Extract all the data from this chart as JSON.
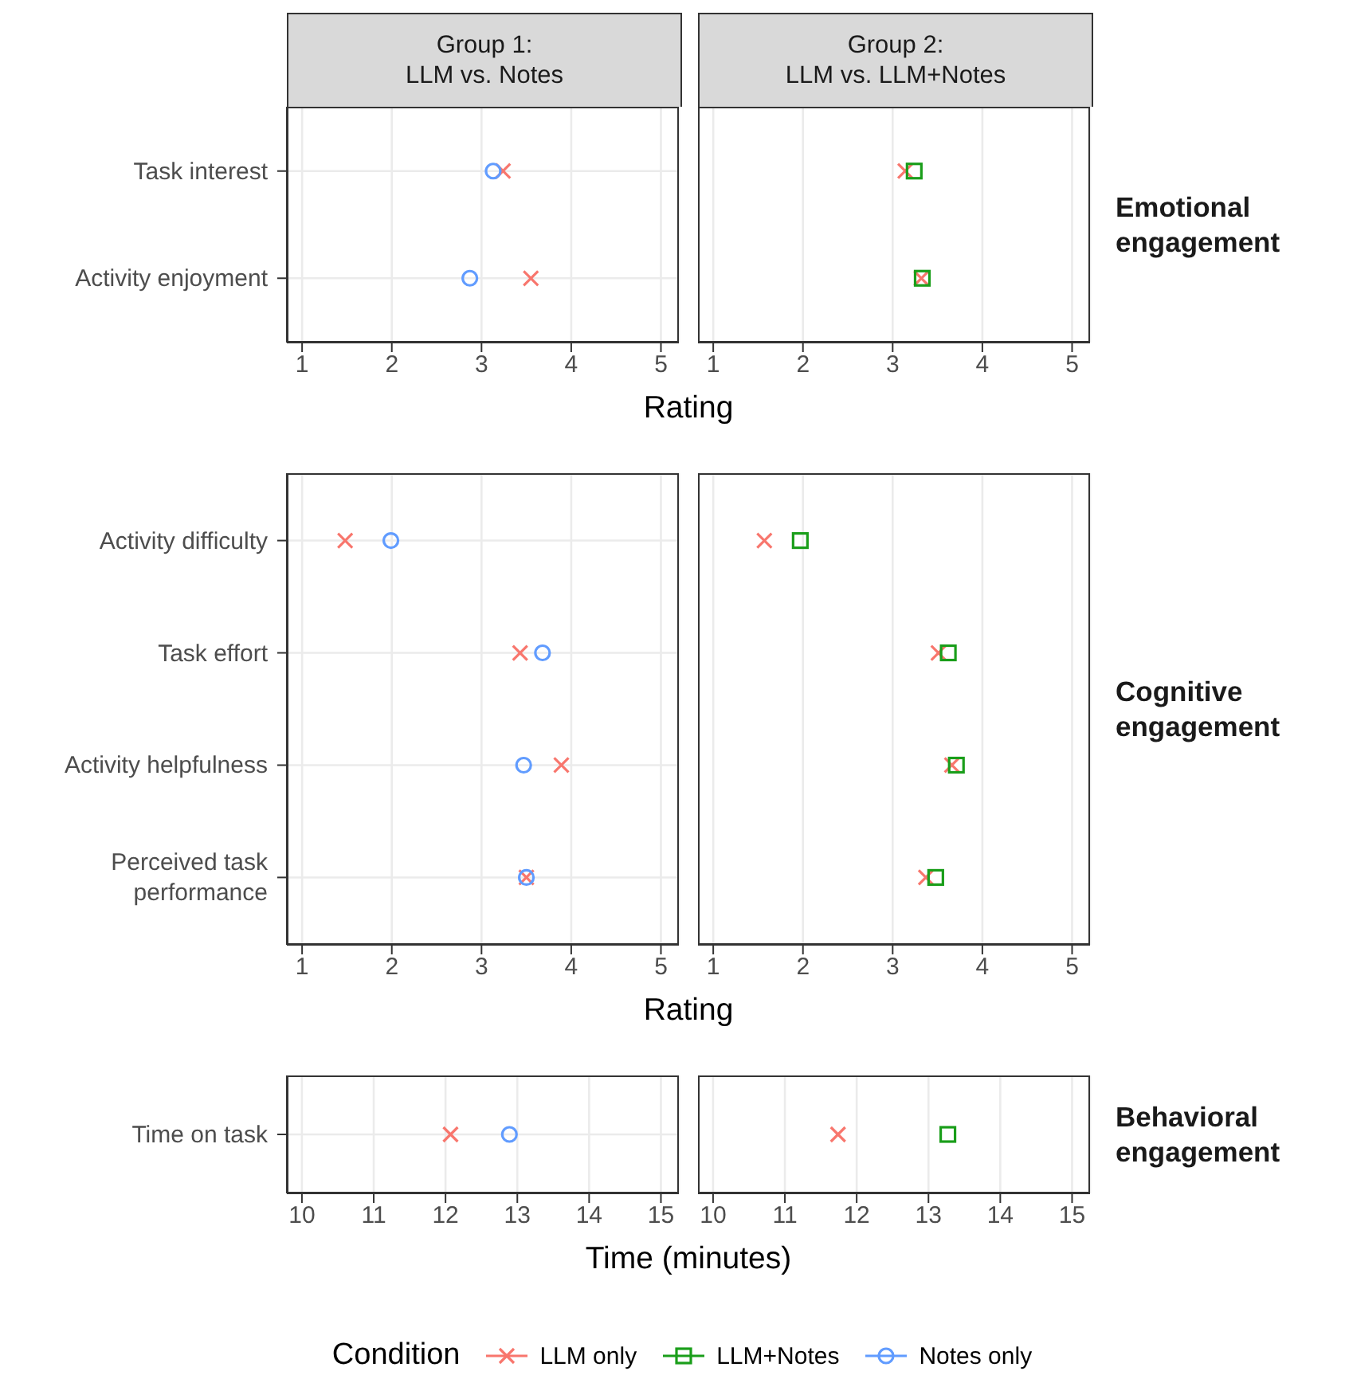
{
  "chart_data": [
    {
      "type": "scatter",
      "orientation": "horizontal",
      "title": "Group 1:\nLLM vs. Notes",
      "xlabel": "Rating",
      "categories": [
        "Task interest",
        "Activity enjoyment"
      ],
      "xlim": [
        0.83,
        5.2
      ],
      "xticks": [
        1,
        2,
        3,
        4,
        5
      ],
      "grid": true,
      "series": [
        {
          "color": "#f8766d",
          "marker": "cross",
          "values": [
            3.24,
            3.55
          ]
        },
        {
          "name": "Notes only",
          "color": "#619cff",
          "marker": "circle",
          "values": [
            3.13,
            2.87
          ]
        }
      ]
    },
    {
      "type": "scatter",
      "orientation": "horizontal",
      "title": "Group 2:\nLLM vs. LLM+Notes",
      "categories": [
        null,
        null
      ],
      "xlim": [
        0.83,
        5.2
      ],
      "xticks": [
        1,
        2,
        3,
        4,
        5
      ],
      "grid": true,
      "tick_labels": "x",
      "annotations": [
        "Emotional engagement"
      ],
      "legend": "bottom",
      "legend_title": "Condition",
      "series": [
        {
          "name": "LLM only",
          "color": "#f8766d",
          "marker": "cross",
          "values": [
            3.14,
            3.32
          ]
        },
        {
          "name": "LLM+Notes",
          "color": "#1a9e1a",
          "marker": "square",
          "values": [
            3.24,
            3.33
          ]
        }
      ]
    },
    {
      "type": "scatter",
      "orientation": "horizontal",
      "xlabel": "Rating",
      "categories": [
        "Activity difficulty",
        "Task effort",
        "Activity helpfulness",
        "Perceived task performance"
      ],
      "xlim": [
        0.83,
        5.2
      ],
      "xticks": [
        1,
        2,
        3,
        4,
        5
      ],
      "grid": true,
      "series": [
        {
          "color": "#f8766d",
          "marker": "cross",
          "values": [
            1.48,
            3.43,
            3.89,
            3.5
          ]
        },
        {
          "color": "#619cff",
          "marker": "circle",
          "values": [
            1.99,
            3.68,
            3.47,
            3.5
          ]
        }
      ]
    },
    {
      "type": "scatter",
      "orientation": "horizontal",
      "categories": [
        null,
        null,
        null,
        null
      ],
      "xlim": [
        0.83,
        5.2
      ],
      "xticks": [
        1,
        2,
        3,
        4,
        5
      ],
      "grid": true,
      "tick_labels": "x",
      "annotations": [
        "Cognitive engagement"
      ],
      "series": [
        {
          "color": "#f8766d",
          "marker": "cross",
          "values": [
            1.57,
            3.51,
            3.66,
            3.37
          ]
        },
        {
          "color": "#1a9e1a",
          "marker": "square",
          "values": [
            1.97,
            3.62,
            3.71,
            3.48
          ]
        }
      ]
    },
    {
      "type": "scatter",
      "orientation": "horizontal",
      "xlabel": "Time (minutes)",
      "categories": [
        "Time on task"
      ],
      "xlim": [
        9.79,
        15.25
      ],
      "xticks": [
        10,
        11,
        12,
        13,
        14,
        15
      ],
      "grid": true,
      "series": [
        {
          "color": "#f8766d",
          "marker": "cross",
          "values": [
            12.07
          ]
        },
        {
          "color": "#619cff",
          "marker": "circle",
          "values": [
            12.89
          ]
        }
      ]
    },
    {
      "type": "scatter",
      "orientation": "horizontal",
      "categories": [
        null
      ],
      "xlim": [
        9.79,
        15.25
      ],
      "xticks": [
        10,
        11,
        12,
        13,
        14,
        15
      ],
      "grid": true,
      "tick_labels": "x",
      "annotations": [
        "Behavioral engagement"
      ],
      "series": [
        {
          "color": "#f8766d",
          "marker": "cross",
          "values": [
            11.74
          ]
        },
        {
          "color": "#1a9e1a",
          "marker": "square",
          "values": [
            13.27
          ]
        }
      ]
    }
  ]
}
